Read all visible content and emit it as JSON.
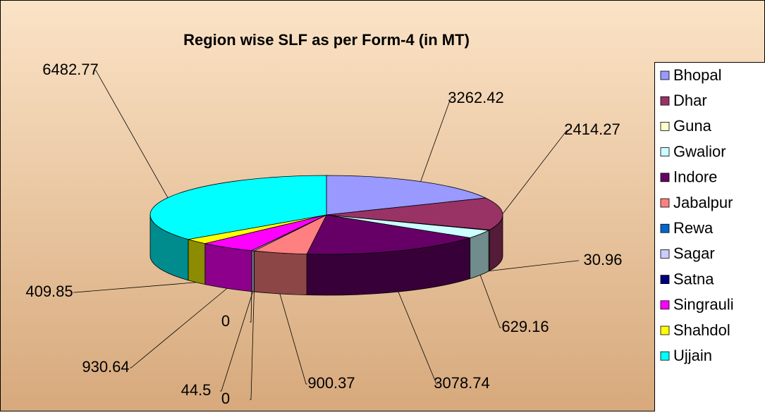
{
  "chart_data": {
    "type": "pie3d",
    "title": "Region wise SLF as per Form-4 (in MT)",
    "categories": [
      "Bhopal",
      "Dhar",
      "Guna",
      "Gwalior",
      "Indore",
      "Jabalpur",
      "Rewa",
      "Sagar",
      "Satna",
      "Singrauli",
      "Shahdol",
      "Ujjain"
    ],
    "values": [
      3262.42,
      2414.27,
      30.96,
      629.16,
      3078.74,
      900.37,
      0,
      44.5,
      0,
      930.64,
      409.85,
      6482.77
    ],
    "colors": [
      "#9999ff",
      "#993366",
      "#ffffcc",
      "#ccffff",
      "#660066",
      "#ff8080",
      "#0066cc",
      "#ccccff",
      "#000080",
      "#ff00ff",
      "#ffff00",
      "#00ffff"
    ],
    "legend": "right"
  }
}
